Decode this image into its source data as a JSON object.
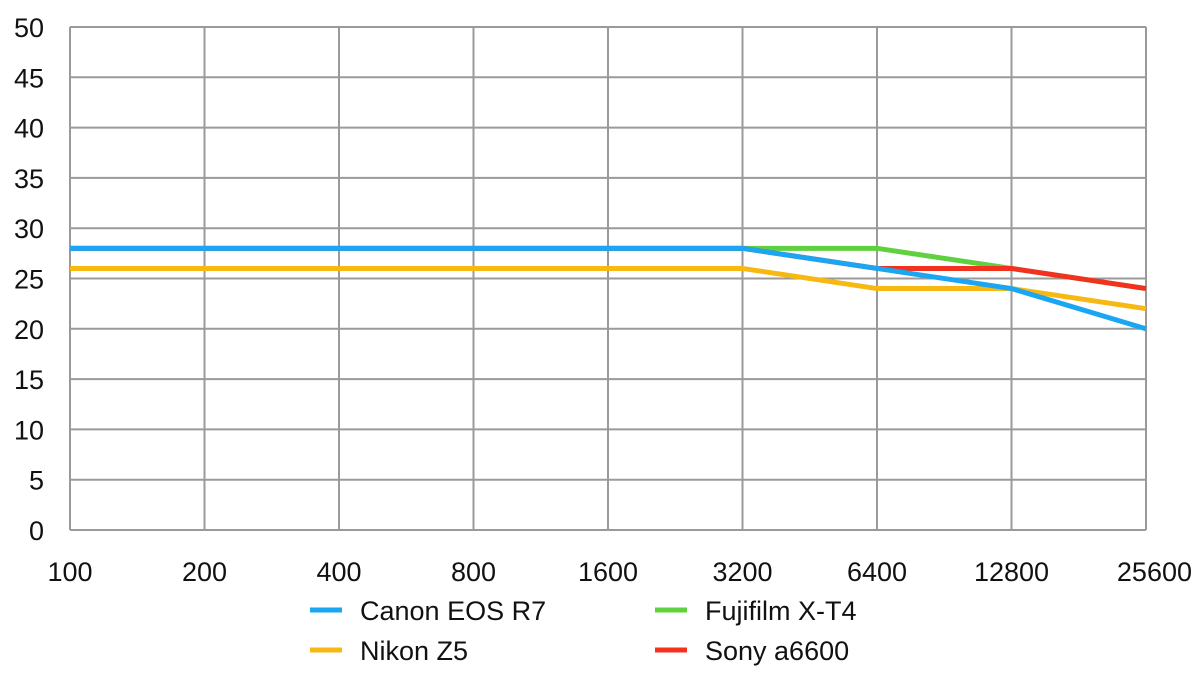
{
  "chart_data": {
    "type": "line",
    "title": "",
    "xlabel": "",
    "ylabel": "",
    "categories": [
      "100",
      "200",
      "400",
      "800",
      "1600",
      "3200",
      "6400",
      "12800",
      "25600"
    ],
    "ylim": [
      0,
      50
    ],
    "yticks": [
      0,
      5,
      10,
      15,
      20,
      25,
      30,
      35,
      40,
      45,
      50
    ],
    "grid": true,
    "legend_position": "bottom",
    "series": [
      {
        "name": "Fujifilm X-T4",
        "color": "#5fd13f",
        "values": [
          28,
          28,
          28,
          28,
          28,
          28,
          28,
          26,
          24
        ]
      },
      {
        "name": "Sony a6600",
        "color": "#f2311e",
        "values": [
          28,
          28,
          28,
          28,
          28,
          28,
          26,
          26,
          24
        ]
      },
      {
        "name": "Nikon Z5",
        "color": "#f7b911",
        "values": [
          26,
          26,
          26,
          26,
          26,
          26,
          24,
          24,
          22
        ]
      },
      {
        "name": "Canon EOS R7",
        "color": "#1aa6f2",
        "values": [
          28,
          28,
          28,
          28,
          28,
          28,
          26,
          24,
          20
        ]
      }
    ],
    "legend_order": [
      "Canon EOS R7",
      "Fujifilm X-T4",
      "Nikon Z5",
      "Sony a6600"
    ]
  }
}
